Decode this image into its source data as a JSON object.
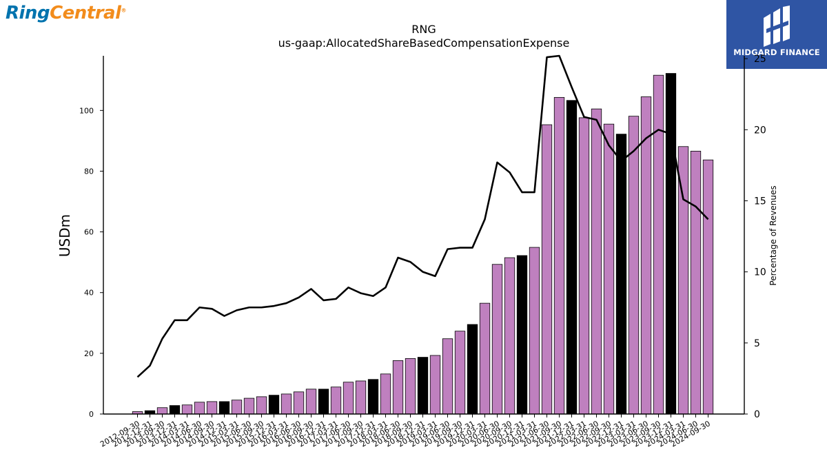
{
  "logos": {
    "left_part1": "Ring",
    "left_part2": "Central",
    "left_reg": "®",
    "right_text": "MIDGARD FINANCE"
  },
  "chart_data": {
    "type": "bar",
    "title": "RNG",
    "subtitle": "us-gaap:AllocatedShareBasedCompensationExpense",
    "ylabel": "USDm",
    "y2label": "Percentage of Revenues",
    "ylim": [
      0,
      118
    ],
    "y2lim": [
      0,
      25.2
    ],
    "yticks": [
      0,
      20,
      40,
      60,
      80,
      100
    ],
    "y2ticks": [
      0,
      5,
      10,
      15,
      20,
      25
    ],
    "bar_color": "#bf80bf",
    "highlight_color": "#000000",
    "line_color": "#000000",
    "categories": [
      "2012-09-30",
      "2012-12-31",
      "2013-09-30",
      "2013-12-31",
      "2014-03-31",
      "2014-06-30",
      "2014-09-30",
      "2014-12-31",
      "2015-03-31",
      "2015-06-30",
      "2015-09-30",
      "2015-12-31",
      "2016-03-31",
      "2016-06-30",
      "2016-09-30",
      "2016-12-31",
      "2017-03-31",
      "2017-06-30",
      "2017-09-30",
      "2017-12-31",
      "2018-03-31",
      "2018-06-30",
      "2018-09-30",
      "2018-12-31",
      "2019-03-31",
      "2019-06-30",
      "2019-09-30",
      "2019-12-31",
      "2020-03-31",
      "2020-06-30",
      "2020-09-30",
      "2020-12-31",
      "2021-03-31",
      "2021-06-30",
      "2021-09-30",
      "2021-12-31",
      "2022-03-31",
      "2022-06-30",
      "2022-09-30",
      "2022-12-31",
      "2023-03-31",
      "2023-06-30",
      "2023-09-30",
      "2023-12-31",
      "2024-03-31",
      "2024-06-30",
      "2024-09-30"
    ],
    "values": [
      0.8,
      1.1,
      2.1,
      2.8,
      3.0,
      3.9,
      4.1,
      4.1,
      4.6,
      5.2,
      5.7,
      6.2,
      6.6,
      7.3,
      8.2,
      8.2,
      8.9,
      10.5,
      10.9,
      11.4,
      13.2,
      17.6,
      18.3,
      18.7,
      19.3,
      24.8,
      27.3,
      29.5,
      36.5,
      49.3,
      51.5,
      52.2,
      54.9,
      95.3,
      104.3,
      103.3,
      97.6,
      100.5,
      95.5,
      92.2,
      98.1,
      104.5,
      111.6,
      112.2,
      88.1,
      86.6,
      83.7
    ],
    "highlighted": [
      false,
      true,
      false,
      true,
      false,
      false,
      false,
      true,
      false,
      false,
      false,
      true,
      false,
      false,
      false,
      true,
      false,
      false,
      false,
      true,
      false,
      false,
      false,
      true,
      false,
      false,
      false,
      true,
      false,
      false,
      false,
      true,
      false,
      false,
      false,
      true,
      false,
      false,
      false,
      true,
      false,
      false,
      false,
      true,
      false,
      false,
      false
    ],
    "line_values": [
      2.6,
      3.4,
      5.3,
      6.6,
      6.6,
      7.5,
      7.4,
      6.9,
      7.3,
      7.5,
      7.5,
      7.6,
      7.8,
      8.2,
      8.8,
      8.0,
      8.1,
      8.9,
      8.5,
      8.3,
      8.9,
      11.0,
      10.7,
      10.0,
      9.7,
      11.6,
      11.7,
      11.7,
      13.7,
      17.7,
      17.0,
      15.6,
      15.6,
      25.1,
      25.2,
      23.0,
      20.9,
      20.7,
      18.9,
      17.8,
      18.5,
      19.4,
      20.0,
      19.7,
      15.1,
      14.6,
      13.7
    ]
  }
}
